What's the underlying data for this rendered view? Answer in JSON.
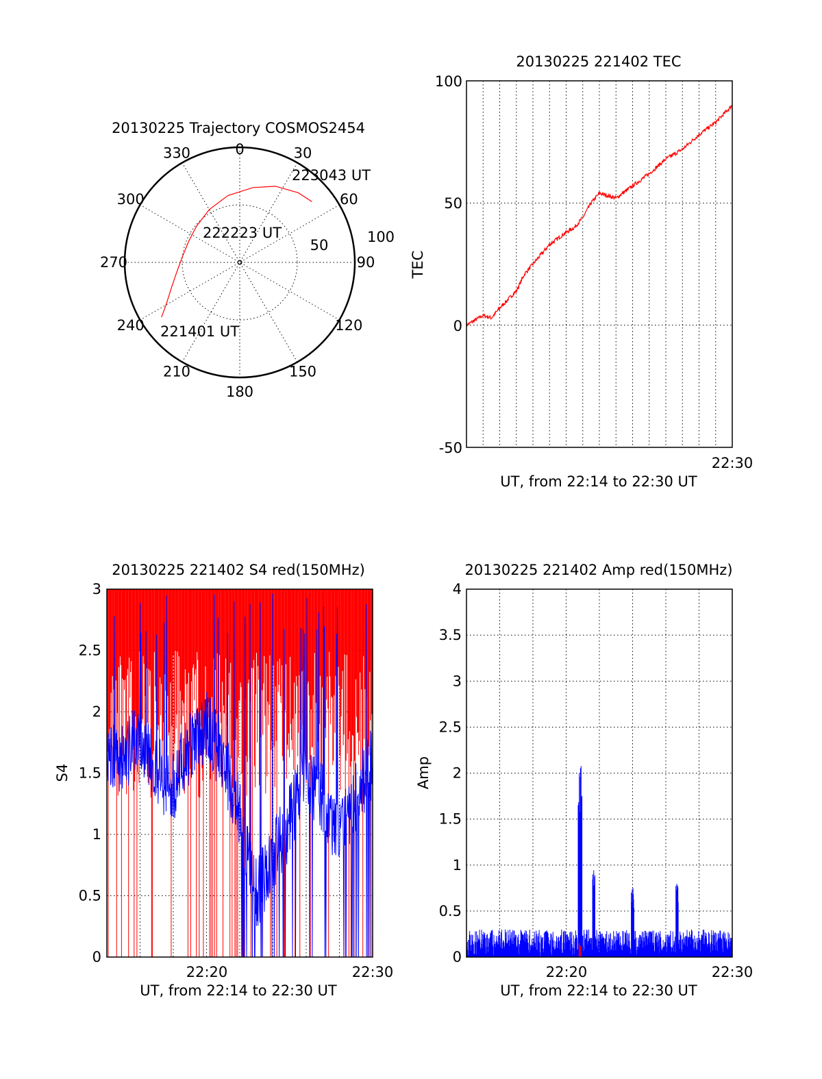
{
  "colors": {
    "red": "#ff0000",
    "blue": "#0000ff",
    "axis": "#000000"
  },
  "chart_data": [
    {
      "type": "polar",
      "title": "20130225 Trajectory COSMOS2454",
      "angle_labels": [
        "0",
        "30",
        "60",
        "90",
        "120",
        "150",
        "180",
        "210",
        "240",
        "270",
        "300",
        "330"
      ],
      "radius_labels": [
        "50",
        "100"
      ],
      "rlim": [
        0,
        100
      ],
      "grid": true,
      "annotations": [
        "223043 UT",
        "222223 UT",
        "221401 UT"
      ],
      "trajectory": {
        "color": "red",
        "az": [
          235,
          240,
          250,
          262,
          276,
          292,
          310,
          330,
          350,
          10,
          25,
          40,
          50
        ],
        "r": [
          83,
          74,
          63,
          55,
          50,
          48,
          49,
          53,
          59,
          66,
          73,
          79,
          82
        ]
      }
    },
    {
      "type": "line",
      "title": "20130225 221402 TEC",
      "xlabel": "UT, from 22:14 to 22:30 UT",
      "ylabel": "TEC",
      "xlim": [
        "22:14",
        "22:30"
      ],
      "ylim": [
        -50,
        100
      ],
      "xtick_labels": [
        "22:30"
      ],
      "ytick_labels": [
        "100",
        "50",
        "0",
        "-50"
      ],
      "grid": true,
      "series": [
        {
          "color": "red",
          "x": [
            "22:14:00",
            "22:15:00",
            "22:15:30",
            "22:16:00",
            "22:17:00",
            "22:17:30",
            "22:18:00",
            "22:19:00",
            "22:20:00",
            "22:20:30",
            "22:21:00",
            "22:21:30",
            "22:22:00",
            "22:23:00",
            "22:24:00",
            "22:25:00",
            "22:26:00",
            "22:27:00",
            "22:28:00",
            "22:29:00",
            "22:30:00"
          ],
          "y": [
            0,
            4,
            3,
            7,
            14,
            21,
            25,
            33,
            38,
            40,
            44,
            50,
            54,
            52,
            57,
            62,
            68,
            72,
            78,
            83,
            90
          ]
        }
      ]
    },
    {
      "type": "line",
      "title": "20130225 221402 S4 red(150MHz)",
      "xlabel": "UT, from 22:14 to 22:30 UT",
      "ylabel": "S4",
      "xlim": [
        "22:14",
        "22:30"
      ],
      "ylim": [
        0,
        3
      ],
      "xtick_labels": [
        "22:20",
        "22:30"
      ],
      "ytick_labels": [
        "3",
        "2.5",
        "2",
        "1.5",
        "1",
        "0.5",
        "0"
      ],
      "grid": true,
      "series": [
        {
          "color": "red",
          "description_values": "high-frequency values saturating at 3 with frequent drops to 0",
          "envelope_min": 0,
          "envelope_max": 3
        },
        {
          "color": "blue",
          "baseline": [
            1.7,
            1.6,
            1.8,
            1.5,
            1.4,
            1.7,
            1.9,
            1.6,
            1.2,
            0.5,
            0.8,
            1.1,
            1.5,
            1.3,
            1.0,
            1.3,
            1.6
          ]
        }
      ]
    },
    {
      "type": "line",
      "title": "20130225 221402 Amp red(150MHz)",
      "xlabel": "UT, from 22:14 to 22:30 UT",
      "ylabel": "Amp",
      "xlim": [
        "22:14",
        "22:30"
      ],
      "ylim": [
        0,
        4
      ],
      "xtick_labels": [
        "22:20",
        "22:30"
      ],
      "ytick_labels": [
        "4",
        "3.5",
        "3",
        "2.5",
        "2",
        "1.5",
        "1",
        "0.5",
        "0"
      ],
      "grid": true,
      "series": [
        {
          "color": "blue",
          "noise_level": 0.3,
          "peaks": [
            {
              "x": "22:20:50",
              "y": 2.1
            },
            {
              "x": "22:21:40",
              "y": 0.95
            },
            {
              "x": "22:24:00",
              "y": 0.75
            },
            {
              "x": "22:26:40",
              "y": 0.8
            }
          ]
        },
        {
          "color": "red",
          "peaks": [
            {
              "x": "22:20:50",
              "y": 0.15
            }
          ]
        }
      ]
    }
  ]
}
